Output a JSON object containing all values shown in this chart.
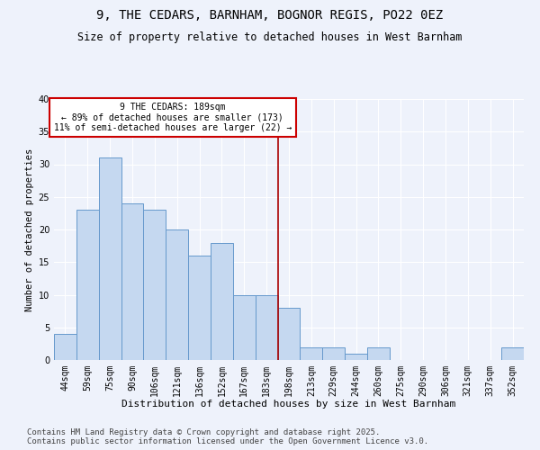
{
  "title": "9, THE CEDARS, BARNHAM, BOGNOR REGIS, PO22 0EZ",
  "subtitle": "Size of property relative to detached houses in West Barnham",
  "xlabel": "Distribution of detached houses by size in West Barnham",
  "ylabel": "Number of detached properties",
  "categories": [
    "44sqm",
    "59sqm",
    "75sqm",
    "90sqm",
    "106sqm",
    "121sqm",
    "136sqm",
    "152sqm",
    "167sqm",
    "183sqm",
    "198sqm",
    "213sqm",
    "229sqm",
    "244sqm",
    "260sqm",
    "275sqm",
    "290sqm",
    "306sqm",
    "321sqm",
    "337sqm",
    "352sqm"
  ],
  "values": [
    4,
    23,
    31,
    24,
    23,
    20,
    16,
    18,
    10,
    10,
    8,
    2,
    2,
    1,
    2,
    0,
    0,
    0,
    0,
    0,
    2
  ],
  "bar_color": "#c5d8f0",
  "bar_edge_color": "#6699cc",
  "vline_color": "#aa0000",
  "annotation_text": "9 THE CEDARS: 189sqm\n← 89% of detached houses are smaller (173)\n11% of semi-detached houses are larger (22) →",
  "annotation_box_color": "#ffffff",
  "annotation_box_edge": "#cc0000",
  "annotation_fontsize": 7,
  "title_fontsize": 10,
  "subtitle_fontsize": 8.5,
  "xlabel_fontsize": 8,
  "ylabel_fontsize": 7.5,
  "tick_fontsize": 7,
  "ylim": [
    0,
    40
  ],
  "yticks": [
    0,
    5,
    10,
    15,
    20,
    25,
    30,
    35,
    40
  ],
  "background_color": "#eef2fb",
  "grid_color": "#ffffff",
  "footer_line1": "Contains HM Land Registry data © Crown copyright and database right 2025.",
  "footer_line2": "Contains public sector information licensed under the Open Government Licence v3.0.",
  "footer_fontsize": 6.5
}
